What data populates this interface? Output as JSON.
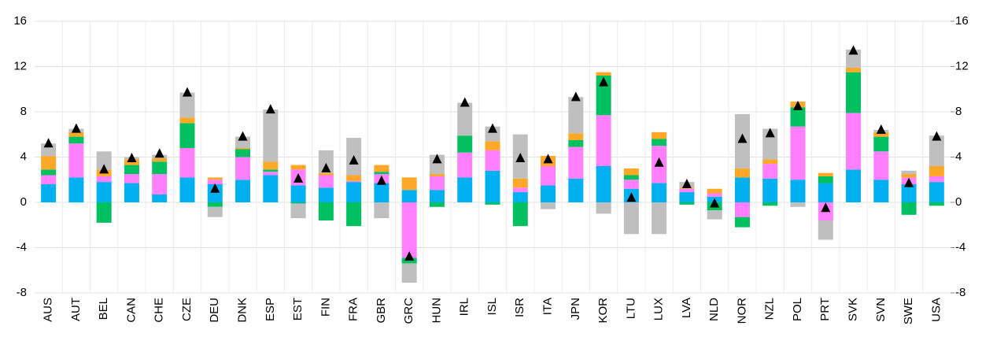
{
  "chart_data": {
    "type": "stacked-bar",
    "categories": [
      "AUS",
      "AUT",
      "BEL",
      "CAN",
      "CHE",
      "CZE",
      "DEU",
      "DNK",
      "ESP",
      "EST",
      "FIN",
      "FRA",
      "GBR",
      "GRC",
      "HUN",
      "IRL",
      "ISL",
      "ISR",
      "ITA",
      "JPN",
      "KOR",
      "LTU",
      "LUX",
      "LVA",
      "NLD",
      "NOR",
      "NZL",
      "POL",
      "PRT",
      "SVK",
      "SVN",
      "SWE",
      "USA"
    ],
    "series": [
      {
        "kind": "bar",
        "color": "#00b0f0",
        "values": [
          1.6,
          2.2,
          1.8,
          1.7,
          0.7,
          2.2,
          1.6,
          2.0,
          2.4,
          1.5,
          1.3,
          1.8,
          1.7,
          1.1,
          1.1,
          2.2,
          2.8,
          0.9,
          1.5,
          2.1,
          3.2,
          1.2,
          1.7,
          0.9,
          0.5,
          2.2,
          2.1,
          2.0,
          1.7,
          2.9,
          2.0,
          1.6,
          1.8
        ]
      },
      {
        "kind": "bar",
        "color": "#ff7fff",
        "values": [
          0.8,
          3.0,
          0.5,
          0.8,
          1.8,
          2.6,
          0.4,
          2.0,
          0.3,
          1.4,
          1.1,
          0.1,
          0.8,
          -4.9,
          1.2,
          2.2,
          1.8,
          0.4,
          1.7,
          2.8,
          4.5,
          0.8,
          3.3,
          0.3,
          0.3,
          -1.3,
          1.3,
          4.7,
          -1.6,
          5.0,
          2.5,
          0.6,
          0.5
        ]
      },
      {
        "kind": "bar",
        "color": "#00c060",
        "values": [
          0.5,
          0.6,
          -1.8,
          0.8,
          1.1,
          2.2,
          -0.4,
          0.7,
          0.2,
          -0.1,
          -1.6,
          -2.1,
          0.2,
          -0.5,
          -0.4,
          1.5,
          -0.2,
          -2.1,
          0,
          0.6,
          3.5,
          0.4,
          0.6,
          -0.2,
          -0.7,
          -0.9,
          -0.3,
          1.7,
          0.6,
          3.6,
          1.3,
          -1.1,
          -0.3
        ]
      },
      {
        "kind": "bar",
        "color": "#ffa726",
        "values": [
          1.2,
          0.4,
          0.6,
          0.5,
          0.3,
          0.5,
          0.2,
          0.1,
          0.7,
          0.4,
          0.2,
          0.5,
          0.6,
          1.1,
          0.2,
          0,
          0.8,
          0.8,
          0.9,
          0.6,
          0.3,
          0.6,
          0.6,
          0.1,
          0.4,
          0.8,
          0.4,
          0.5,
          0.3,
          0.4,
          0.4,
          0.3,
          0.9
        ]
      },
      {
        "kind": "bar",
        "color": "#bfbfbf",
        "values": [
          1.1,
          0.3,
          1.6,
          0.2,
          0.3,
          2.2,
          -0.9,
          1.0,
          4.6,
          -1.3,
          2.0,
          3.3,
          -1.4,
          -1.7,
          1.7,
          2.9,
          1.3,
          3.9,
          -0.6,
          3.2,
          -1.0,
          -2.8,
          -2.8,
          0.5,
          -0.8,
          4.8,
          2.7,
          -0.4,
          -1.7,
          1.6,
          0.2,
          0.3,
          2.7
        ]
      },
      {
        "kind": "marker",
        "color": "#000000",
        "values": [
          5.2,
          6.5,
          2.9,
          3.9,
          4.3,
          9.7,
          1.2,
          5.8,
          8.2,
          2.1,
          3.0,
          3.7,
          1.9,
          -4.8,
          3.8,
          8.8,
          6.5,
          3.9,
          3.8,
          9.3,
          10.6,
          0.4,
          3.5,
          1.6,
          -0.1,
          5.6,
          6.1,
          8.5,
          -0.5,
          13.4,
          6.4,
          1.7,
          5.8
        ]
      }
    ],
    "ylim": [
      -8,
      16
    ],
    "yticks": [
      -8,
      -4,
      0,
      4,
      8,
      12,
      16
    ],
    "grid": true
  }
}
